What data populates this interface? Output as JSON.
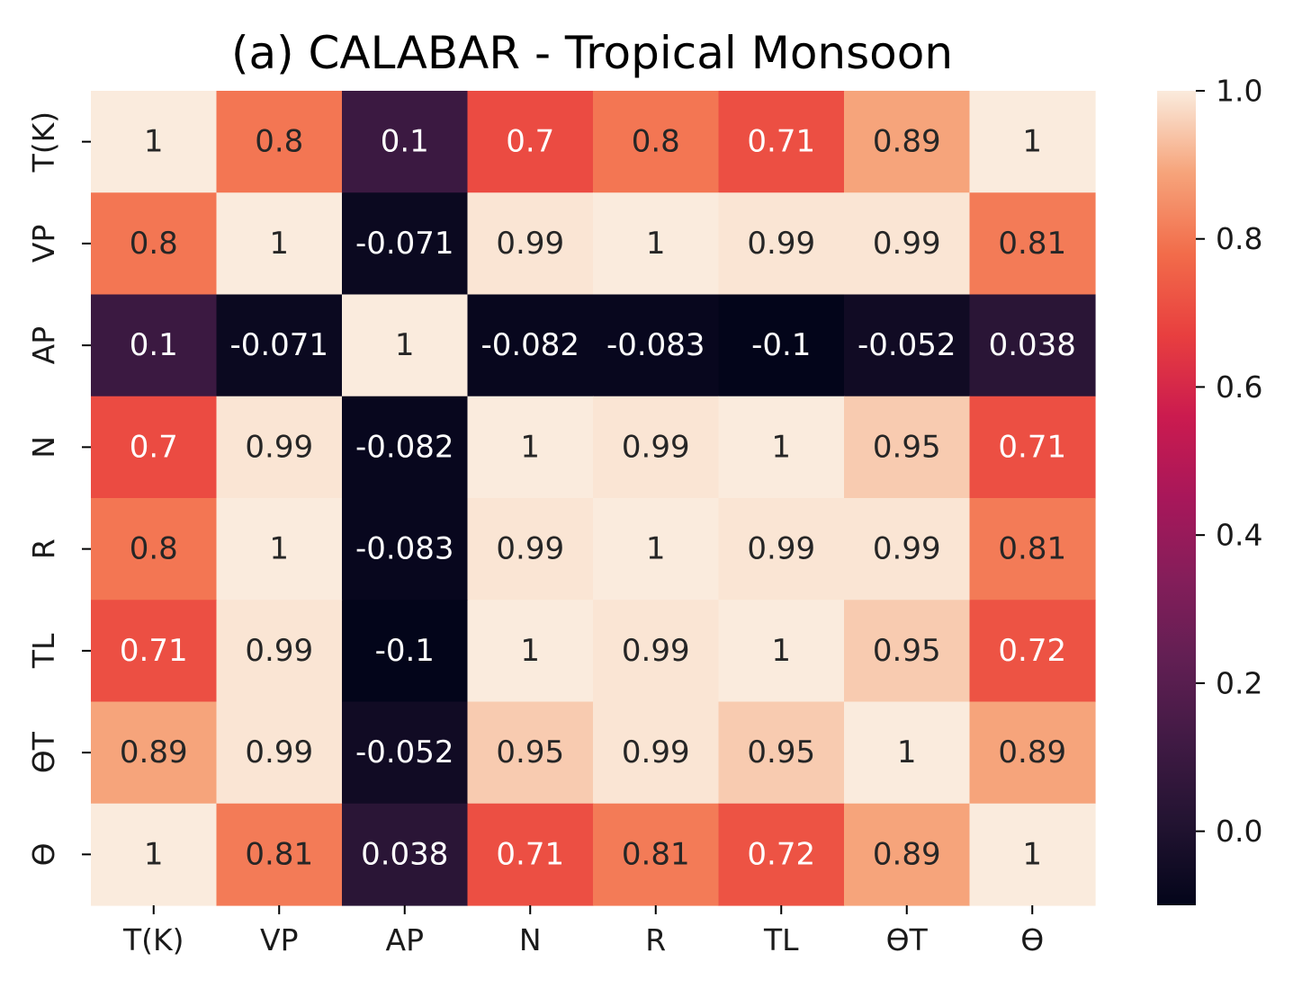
{
  "chart_data": {
    "type": "heatmap",
    "title": "(a) CALABAR - Tropical Monsoon",
    "x_labels": [
      "T(K)",
      "VP",
      "AP",
      "N",
      "R",
      "TL",
      "ϴT",
      "ϴ"
    ],
    "y_labels": [
      "T(K)",
      "VP",
      "AP",
      "N",
      "R",
      "TL",
      "ϴT",
      "ϴ"
    ],
    "values": [
      [
        1,
        0.8,
        0.1,
        0.7,
        0.8,
        0.71,
        0.89,
        1
      ],
      [
        0.8,
        1,
        -0.071,
        0.99,
        1,
        0.99,
        0.99,
        0.81
      ],
      [
        0.1,
        -0.071,
        1,
        -0.082,
        -0.083,
        -0.1,
        -0.052,
        0.038
      ],
      [
        0.7,
        0.99,
        -0.082,
        1,
        0.99,
        1,
        0.95,
        0.71
      ],
      [
        0.8,
        1,
        -0.083,
        0.99,
        1,
        0.99,
        0.99,
        0.81
      ],
      [
        0.71,
        0.99,
        -0.1,
        1,
        0.99,
        1,
        0.95,
        0.72
      ],
      [
        0.89,
        0.99,
        -0.052,
        0.95,
        0.99,
        0.95,
        1,
        0.89
      ],
      [
        1,
        0.81,
        0.038,
        0.71,
        0.81,
        0.72,
        0.89,
        1
      ]
    ],
    "annotations": [
      [
        "1",
        "0.8",
        "0.1",
        "0.7",
        "0.8",
        "0.71",
        "0.89",
        "1"
      ],
      [
        "0.8",
        "1",
        "-0.071",
        "0.99",
        "1",
        "0.99",
        "0.99",
        "0.81"
      ],
      [
        "0.1",
        "-0.071",
        "1",
        "-0.082",
        "-0.083",
        "-0.1",
        "-0.052",
        "0.038"
      ],
      [
        "0.7",
        "0.99",
        "-0.082",
        "1",
        "0.99",
        "1",
        "0.95",
        "0.71"
      ],
      [
        "0.8",
        "1",
        "-0.083",
        "0.99",
        "1",
        "0.99",
        "0.99",
        "0.81"
      ],
      [
        "0.71",
        "0.99",
        "-0.1",
        "1",
        "0.99",
        "1",
        "0.95",
        "0.72"
      ],
      [
        "0.89",
        "0.99",
        "-0.052",
        "0.95",
        "0.99",
        "0.95",
        "1",
        "0.89"
      ],
      [
        "1",
        "0.81",
        "0.038",
        "0.71",
        "0.81",
        "0.72",
        "0.89",
        "1"
      ]
    ],
    "colorbar": {
      "range": [
        -0.1,
        1.0
      ],
      "ticks": [
        0.0,
        0.2,
        0.4,
        0.6,
        0.8,
        1.0
      ],
      "tick_labels": [
        "0.0",
        "0.2",
        "0.4",
        "0.6",
        "0.8",
        "1.0"
      ],
      "colormap": "rocket"
    },
    "colormap_stops": [
      [
        0.0,
        "#03051a"
      ],
      [
        0.1,
        "#221331"
      ],
      [
        0.2,
        "#401a44"
      ],
      [
        0.3,
        "#611f53"
      ],
      [
        0.4,
        "#841e5a"
      ],
      [
        0.5,
        "#a8175a"
      ],
      [
        0.6,
        "#cb1b4f"
      ],
      [
        0.7,
        "#e83f3f"
      ],
      [
        0.8,
        "#f26c4a"
      ],
      [
        0.9,
        "#f6a47b"
      ],
      [
        1.0,
        "#faebdd"
      ]
    ],
    "text_colors": {
      "on_dark": "#ffffff",
      "on_light": "#262626"
    }
  }
}
